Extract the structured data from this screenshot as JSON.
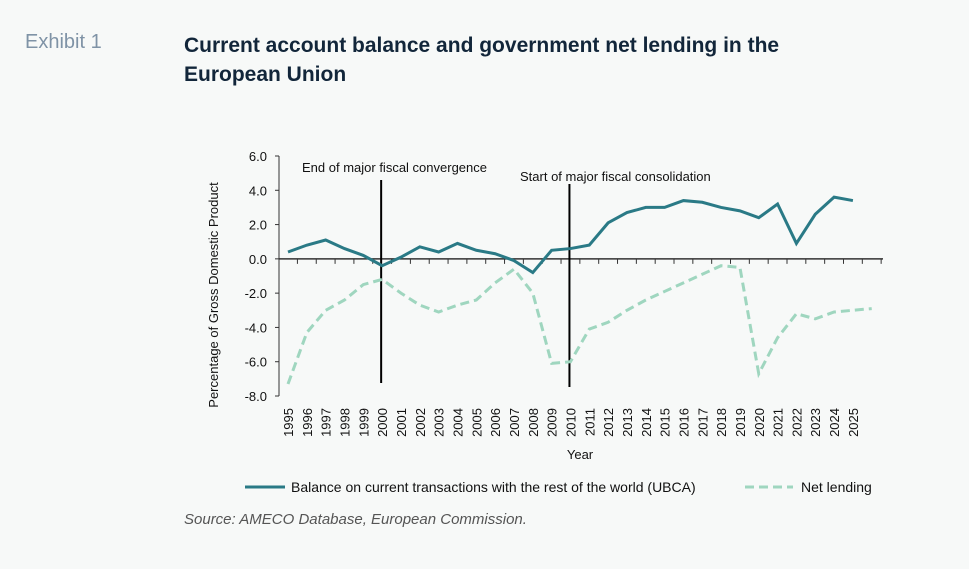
{
  "exhibit": "Exhibit 1",
  "source": "Source: AMECO Database, European Commission.",
  "chart_data": {
    "type": "line",
    "title": "Current account balance and government net lending in the European Union",
    "xlabel": "Year",
    "ylabel": "Percentage of Gross Domestic Product",
    "categories": [
      "1995",
      "1996",
      "1997",
      "1998",
      "1999",
      "2000",
      "2001",
      "2002",
      "2003",
      "2004",
      "2005",
      "2006",
      "2007",
      "2008",
      "2009",
      "2010",
      "2011",
      "2012",
      "2013",
      "2014",
      "2015",
      "2016",
      "2017",
      "2018",
      "2019",
      "2020",
      "2021",
      "2022",
      "2023",
      "2024",
      "2025",
      null
    ],
    "series": [
      {
        "name": "Balance on current transactions with the rest of the world (UBCA)",
        "color": "#2a7a86",
        "dash": false,
        "values": [
          0.4,
          0.8,
          1.1,
          0.6,
          0.2,
          -0.4,
          0.1,
          0.7,
          0.4,
          0.9,
          0.5,
          0.3,
          -0.1,
          -0.8,
          0.5,
          0.6,
          0.8,
          2.1,
          2.7,
          3.0,
          3.0,
          3.4,
          3.3,
          3.0,
          2.8,
          2.4,
          3.2,
          0.9,
          2.6,
          3.6,
          3.4,
          null
        ]
      },
      {
        "name": "Net lending",
        "color": "#9fd6bf",
        "dash": true,
        "values": [
          -7.3,
          -4.3,
          -3.0,
          -2.4,
          -1.5,
          -1.2,
          -2.0,
          -2.7,
          -3.1,
          -2.7,
          -2.4,
          -1.4,
          -0.6,
          -2.0,
          -6.1,
          -6.0,
          -4.1,
          -3.7,
          -3.0,
          -2.4,
          -1.9,
          -1.4,
          -0.9,
          -0.4,
          -0.5,
          -6.7,
          -4.6,
          -3.2,
          -3.5,
          -3.1,
          -3.0,
          -2.9
        ]
      }
    ],
    "annotations": [
      {
        "text": "End of major fiscal convergence",
        "x": "2000"
      },
      {
        "text": "Start of major fiscal consolidation",
        "x": "2010"
      }
    ],
    "ylim": [
      -8,
      6
    ],
    "yticks": [
      {
        "value": -8,
        "label": "-8.0"
      },
      {
        "value": -6,
        "label": "-6.0"
      },
      {
        "value": -4,
        "label": "-4.0"
      },
      {
        "value": -2,
        "label": "-2.0"
      },
      {
        "value": 0,
        "label": "0.0"
      },
      {
        "value": 2,
        "label": "2.0"
      },
      {
        "value": 4,
        "label": "4.0"
      },
      {
        "value": 6,
        "label": "6.0"
      }
    ],
    "legend": "bottom"
  }
}
